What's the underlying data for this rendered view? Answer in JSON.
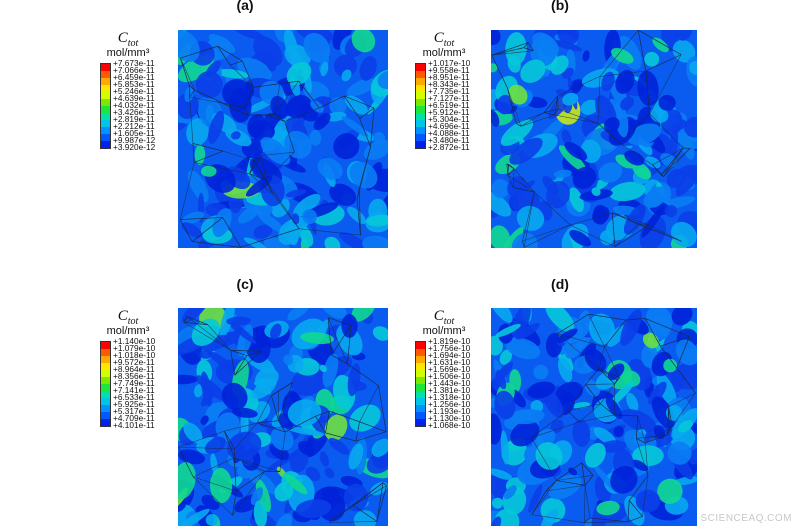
{
  "legend_title": "C",
  "legend_title_sub": "tot",
  "legend_unit": "mol/mm³",
  "colormap": [
    "#ff0000",
    "#ff5a00",
    "#ffa800",
    "#ffe600",
    "#d0ff00",
    "#7ce800",
    "#1ce63c",
    "#00e2a8",
    "#00c4e8",
    "#0092ff",
    "#0058ff",
    "#0020f0"
  ],
  "panels": [
    {
      "label": "(a)",
      "ticks": [
        "+7.673e-11",
        "+7.066e-11",
        "+6.459e-11",
        "+5.853e-11",
        "+5.246e-11",
        "+4.639e-11",
        "+4.032e-11",
        "+3.426e-11",
        "+2.819e-11",
        "+2.212e-11",
        "+1.605e-11",
        "+9.987e-12",
        "+3.920e-12"
      ]
    },
    {
      "label": "(b)",
      "ticks": [
        "+1.017e-10",
        "+9.558e-11",
        "+8.951e-11",
        "+8.343e-11",
        "+7.735e-11",
        "+7.127e-11",
        "+6.519e-11",
        "+5.912e-11",
        "+5.304e-11",
        "+4.696e-11",
        "+4.088e-11",
        "+3.480e-11",
        "+2.872e-11"
      ]
    },
    {
      "label": "(c)",
      "ticks": [
        "+1.140e-10",
        "+1.079e-10",
        "+1.018e-10",
        "+9.572e-11",
        "+8.964e-11",
        "+8.356e-11",
        "+7.749e-11",
        "+7.141e-11",
        "+6.533e-11",
        "+5.925e-11",
        "+5.317e-11",
        "+4.709e-11",
        "+4.101e-11"
      ]
    },
    {
      "label": "(d)",
      "ticks": [
        "+1.819e-10",
        "+1.756e-10",
        "+1.694e-10",
        "+1.631e-10",
        "+1.569e-10",
        "+1.506e-10",
        "+1.443e-10",
        "+1.381e-10",
        "+1.318e-10",
        "+1.256e-10",
        "+1.193e-10",
        "+1.130e-10",
        "+1.068e-10"
      ]
    }
  ],
  "watermark": "SCIENCEAQ.COM"
}
